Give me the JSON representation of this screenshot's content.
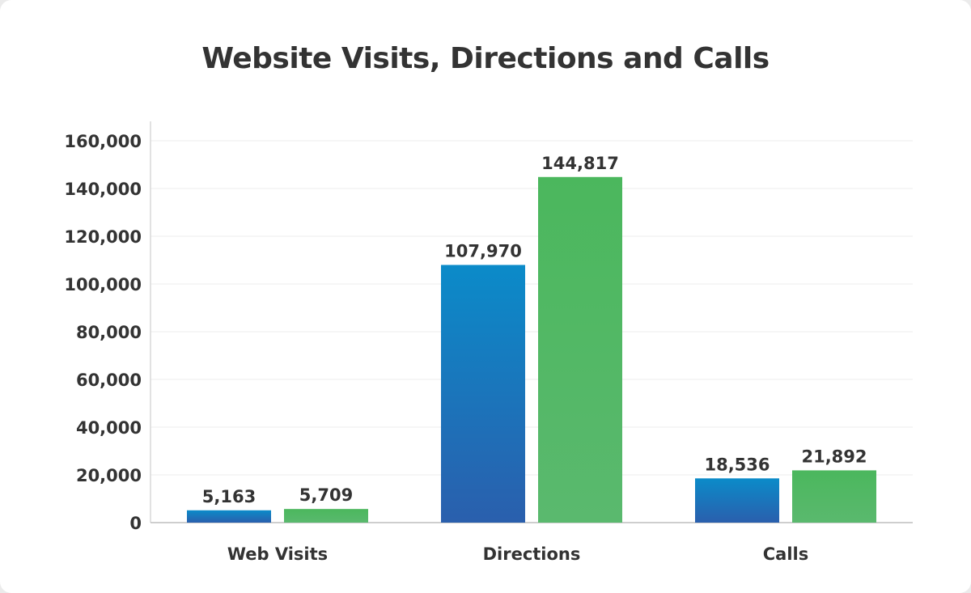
{
  "chart_data": {
    "type": "bar",
    "title": "Website Visits, Directions and Calls",
    "xlabel": "",
    "ylabel": "",
    "categories": [
      "Web Visits",
      "Directions",
      "Calls"
    ],
    "series": [
      {
        "color": "#1f6fb8",
        "values": [
          5163,
          107970,
          18536
        ],
        "labels": [
          "5,163",
          "107,970",
          "18,536"
        ]
      },
      {
        "color": "#4cb85f",
        "values": [
          5709,
          144817,
          21892
        ],
        "labels": [
          "5,709",
          "144,817",
          "21,892"
        ]
      }
    ],
    "yticks": [
      0,
      20000,
      40000,
      60000,
      80000,
      100000,
      120000,
      140000,
      160000
    ],
    "ytick_labels": [
      "0",
      "20,000",
      "40,000",
      "60,000",
      "80,000",
      "100,000",
      "120,000",
      "140,000",
      "160,000"
    ],
    "ylim": [
      0,
      160000
    ],
    "grid": true,
    "legend": "none"
  }
}
